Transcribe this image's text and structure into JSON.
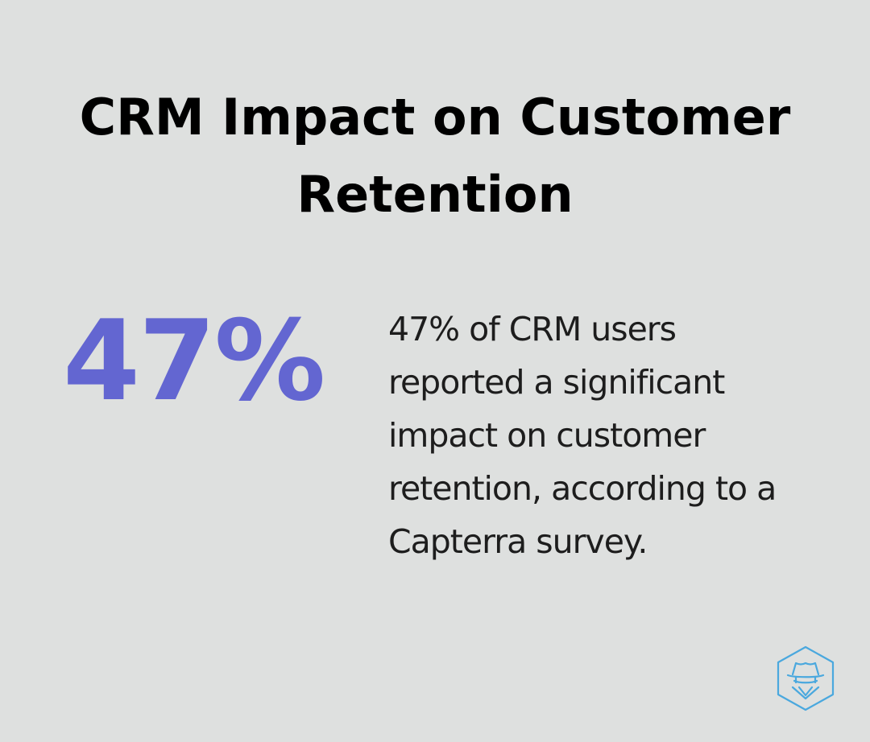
{
  "title": "CRM Impact on Customer Retention",
  "stat": {
    "value": "47%",
    "description": "47% of CRM users reported a significant impact on customer retention, according to a Capterra survey."
  },
  "logo": {
    "icon": "hat-agent-hexagon-icon",
    "color": "#4aa8de"
  },
  "colors": {
    "background": "#dee0df",
    "accent": "#6366d1",
    "title": "#000000",
    "body_text": "#1d1d1d"
  }
}
